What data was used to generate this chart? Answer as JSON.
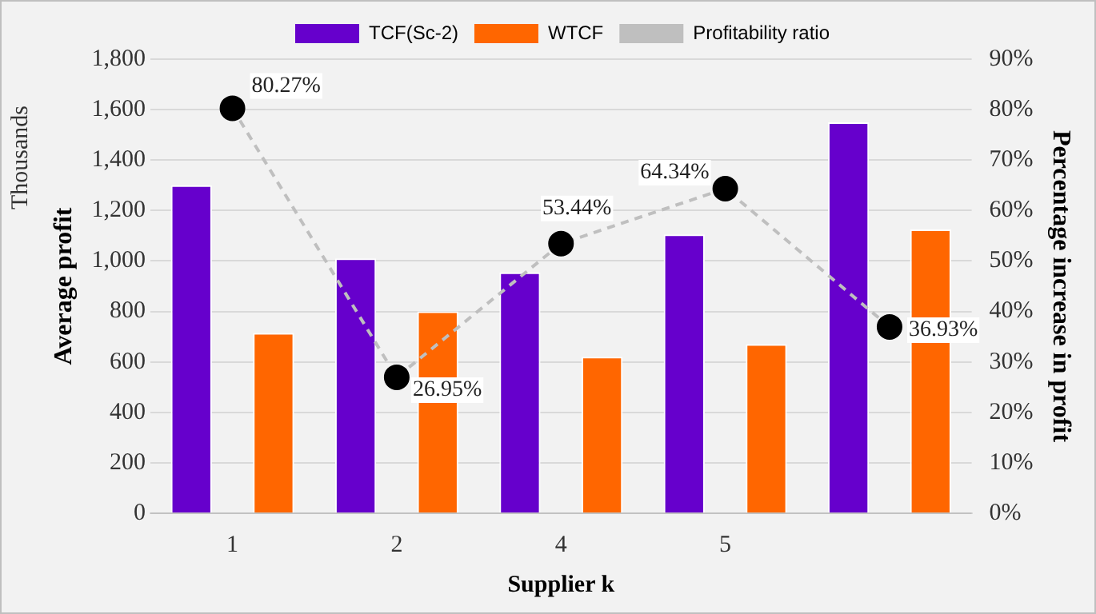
{
  "chart_data": {
    "type": "bar",
    "categories": [
      "1",
      "2",
      "4",
      "5",
      null
    ],
    "xlabel": "Supplier k",
    "ylabel": "Average profit",
    "y2label": "Percentage increase in profit",
    "annotations": [
      "Thousands"
    ],
    "series": [
      {
        "name": "TCF(Sc-2)",
        "color": "#6600cc",
        "values": [
          1300,
          1010,
          955,
          1105,
          1550
        ]
      },
      {
        "name": "WTCF",
        "color": "#ff6600",
        "values": [
          715,
          800,
          620,
          670,
          1125
        ]
      },
      {
        "name": "Profitability ratio",
        "type": "line",
        "axis": "y2",
        "color": "#bfbfbf",
        "line_style": "dashed",
        "marker": "circle",
        "values": [
          80.27,
          26.95,
          53.44,
          64.34,
          36.93
        ],
        "value_labels": [
          "80.27%",
          "26.95%",
          "53.44%",
          "64.34%",
          "36.93%"
        ]
      }
    ],
    "ylim": [
      0,
      1800
    ],
    "yticks": [
      {
        "value": 0,
        "label": "0"
      },
      {
        "value": 200,
        "label": "200"
      },
      {
        "value": 400,
        "label": "400"
      },
      {
        "value": 600,
        "label": "600"
      },
      {
        "value": 800,
        "label": "800"
      },
      {
        "value": 1000,
        "label": "1,000"
      },
      {
        "value": 1200,
        "label": "1,200"
      },
      {
        "value": 1400,
        "label": "1,400"
      },
      {
        "value": 1600,
        "label": "1,600"
      },
      {
        "value": 1800,
        "label": "1,800"
      }
    ],
    "y2lim": [
      0,
      90
    ],
    "y2ticks": [
      {
        "value": 0,
        "label": "0%"
      },
      {
        "value": 10,
        "label": "10%"
      },
      {
        "value": 20,
        "label": "20%"
      },
      {
        "value": 30,
        "label": "30%"
      },
      {
        "value": 40,
        "label": "40%"
      },
      {
        "value": 50,
        "label": "50%"
      },
      {
        "value": 60,
        "label": "60%"
      },
      {
        "value": 70,
        "label": "70%"
      },
      {
        "value": 80,
        "label": "80%"
      },
      {
        "value": 90,
        "label": "90%"
      }
    ],
    "grid": "y",
    "legend": "top"
  }
}
